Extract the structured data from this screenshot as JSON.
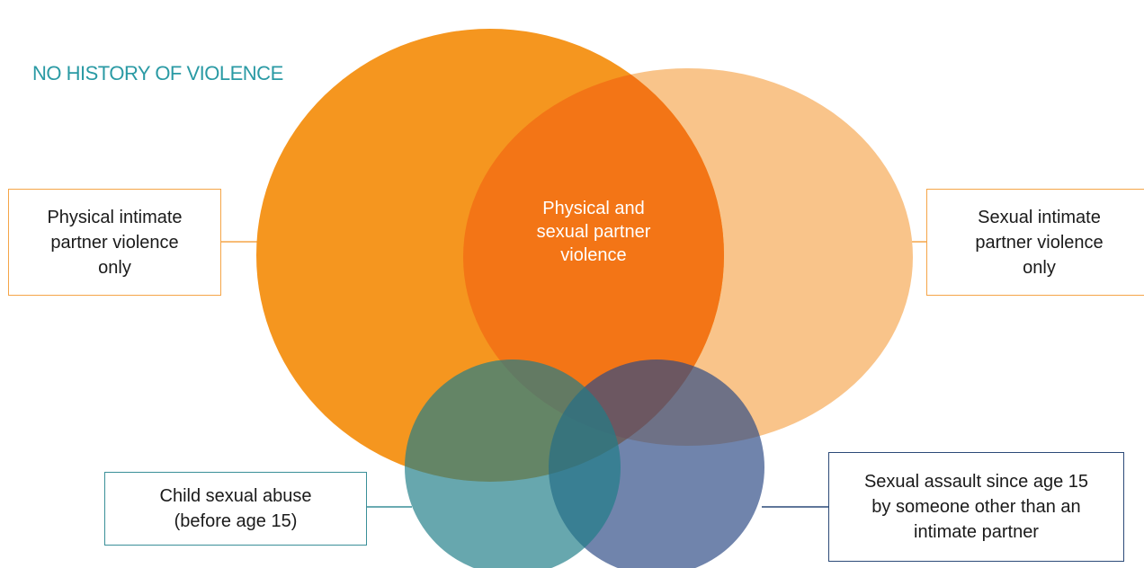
{
  "heading": "NO HISTORY OF VIOLENCE",
  "sets": {
    "physical_only": "Physical intimate\npartner violence\nonly",
    "sexual_only": "Sexual intimate\npartner violence\nonly",
    "physical_and_sexual": "Physical and\nsexual partner\nviolence",
    "child_abuse": "Child sexual abuse\n(before age 15)",
    "sexual_assault_other": "Sexual assault since age 15\nby someone other than an\nintimate partner"
  },
  "colors": {
    "physical": "#f5961f",
    "sexual": "#f9c48a",
    "overlap": "#f37516",
    "child": "#3a8f98",
    "assault": "#2c4a84",
    "heading": "#2a9aa4",
    "box_orange": "#f5a548"
  }
}
